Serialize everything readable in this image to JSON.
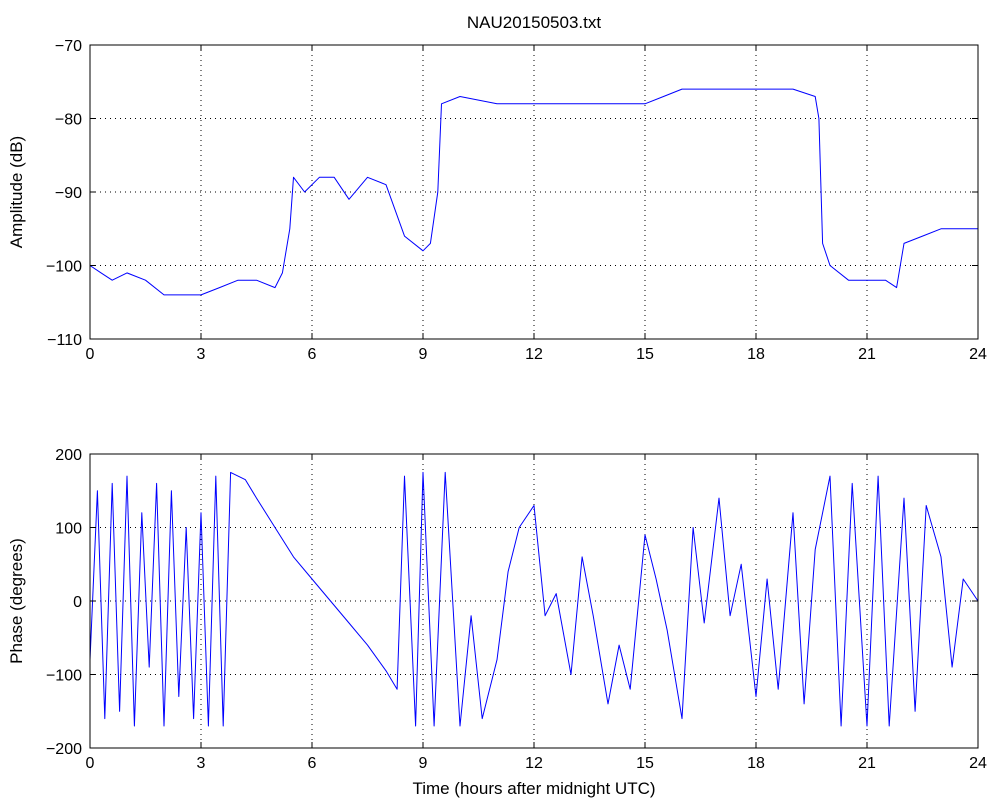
{
  "chart_data": [
    {
      "type": "line",
      "title": "NAU20150503.txt",
      "xlabel": "",
      "ylabel": "Amplitude (dB)",
      "xlim": [
        0,
        24
      ],
      "ylim": [
        -110,
        -70
      ],
      "xticks": [
        "0",
        "3",
        "6",
        "9",
        "12",
        "15",
        "18",
        "21",
        "24"
      ],
      "yticks": [
        "−110",
        "−100",
        "−90",
        "−80",
        "−70"
      ],
      "grid": true,
      "color": "#0000ff",
      "series": [
        {
          "x": [
            0,
            0.3,
            0.6,
            1.0,
            1.5,
            2.0,
            2.5,
            3.0,
            3.5,
            4.0,
            4.5,
            5.0,
            5.2,
            5.4,
            5.5,
            5.8,
            6.2,
            6.6,
            7.0,
            7.5,
            8.0,
            8.5,
            9.0,
            9.2,
            9.4,
            9.5,
            10,
            11,
            12,
            13,
            14,
            15,
            15.5,
            16,
            17,
            18,
            19,
            19.6,
            19.7,
            19.8,
            20.0,
            20.5,
            21,
            21.5,
            21.8,
            22.0,
            22.5,
            23,
            23.5,
            24
          ],
          "y": [
            -100,
            -101,
            -102,
            -101,
            -102,
            -104,
            -104,
            -104,
            -103,
            -102,
            -102,
            -103,
            -101,
            -95,
            -88,
            -90,
            -88,
            -88,
            -91,
            -88,
            -89,
            -96,
            -98,
            -97,
            -90,
            -78,
            -77,
            -78,
            -78,
            -78,
            -78,
            -78,
            -77,
            -76,
            -76,
            -76,
            -76,
            -77,
            -80,
            -97,
            -100,
            -102,
            -102,
            -102,
            -103,
            -97,
            -96,
            -95,
            -95,
            -95
          ]
        }
      ]
    },
    {
      "type": "line",
      "title": "",
      "xlabel": "Time (hours after midnight UTC)",
      "ylabel": "Phase (degrees)",
      "xlim": [
        0,
        24
      ],
      "ylim": [
        -200,
        200
      ],
      "xticks": [
        "0",
        "3",
        "6",
        "9",
        "12",
        "15",
        "18",
        "21",
        "24"
      ],
      "yticks": [
        "−200",
        "−100",
        "0",
        "100",
        "200"
      ],
      "grid": true,
      "color": "#0000ff",
      "series": [
        {
          "x": [
            0,
            0.2,
            0.4,
            0.6,
            0.8,
            1.0,
            1.2,
            1.4,
            1.6,
            1.8,
            2.0,
            2.2,
            2.4,
            2.6,
            2.8,
            3.0,
            3.2,
            3.4,
            3.6,
            3.8,
            4.0,
            4.2,
            4.5,
            5.0,
            5.5,
            6.0,
            6.5,
            7.0,
            7.5,
            8.0,
            8.3,
            8.5,
            8.8,
            9.0,
            9.3,
            9.6,
            10.0,
            10.3,
            10.6,
            11.0,
            11.3,
            11.6,
            12.0,
            12.3,
            12.6,
            13.0,
            13.3,
            13.6,
            14.0,
            14.3,
            14.6,
            15.0,
            15.3,
            15.6,
            16.0,
            16.3,
            16.6,
            17.0,
            17.3,
            17.6,
            18.0,
            18.3,
            18.6,
            19.0,
            19.3,
            19.6,
            20.0,
            20.3,
            20.6,
            21.0,
            21.3,
            21.6,
            22.0,
            22.3,
            22.6,
            23.0,
            23.3,
            23.6,
            24.0
          ],
          "y": [
            -80,
            150,
            -160,
            160,
            -150,
            170,
            -170,
            120,
            -90,
            160,
            -170,
            150,
            -130,
            100,
            -160,
            120,
            -170,
            170,
            -170,
            175,
            170,
            165,
            140,
            100,
            60,
            30,
            0,
            -30,
            -60,
            -95,
            -120,
            170,
            -170,
            175,
            -170,
            175,
            -170,
            -20,
            -160,
            -80,
            40,
            100,
            130,
            -20,
            10,
            -100,
            60,
            -20,
            -140,
            -60,
            -120,
            90,
            30,
            -40,
            -160,
            100,
            -30,
            140,
            -20,
            50,
            -130,
            30,
            -120,
            120,
            -140,
            70,
            170,
            -170,
            160,
            -170,
            170,
            -170,
            140,
            -150,
            130,
            60,
            -90,
            30,
            0
          ]
        }
      ]
    }
  ]
}
